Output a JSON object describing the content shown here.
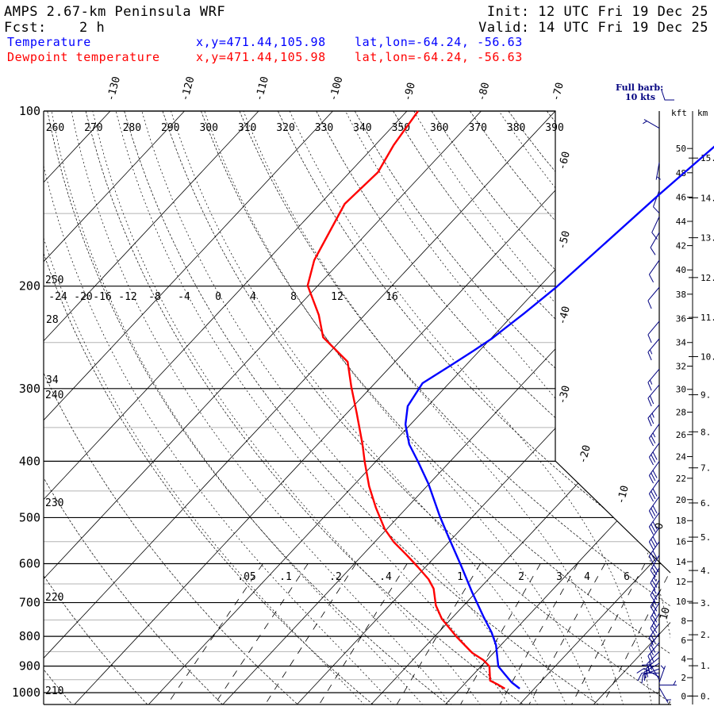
{
  "header": {
    "title": "AMPS 2.67-km Peninsula WRF",
    "fcst_label": "Fcst:",
    "fcst_value": "2 h",
    "init": "Init: 12 UTC Fri 19 Dec 25",
    "valid": "Valid: 14 UTC Fri 19 Dec 25"
  },
  "legend": [
    {
      "name": "Temperature",
      "xy": "x,y=471.44,105.98",
      "latlon": "lat,lon=-64.24, -56.63",
      "color": "#0000ff"
    },
    {
      "name": "Dewpoint temperature",
      "xy": "x,y=471.44,105.98",
      "latlon": "lat,lon=-64.24, -56.63",
      "color": "#ff0000"
    }
  ],
  "barb_key": {
    "line1": "Full barb:",
    "line2": "10 kts",
    "color": "#000080"
  },
  "chart_data": {
    "type": "line",
    "subtype": "skew-T log-p sounding",
    "y_axis": {
      "label": "pressure (hPa)",
      "scale": "log",
      "range": [
        1050,
        100
      ],
      "ticks": [
        "100",
        "200",
        "300",
        "400",
        "500",
        "600",
        "700",
        "800",
        "900",
        "1000"
      ]
    },
    "isotherm_top_labels": [
      "-130",
      "-120",
      "-110",
      "-100",
      "-90",
      "-80",
      "-70"
    ],
    "isotherm_side_labels": [
      "-60",
      "-50",
      "-40",
      "-30",
      "-20",
      "-10",
      "0",
      "10"
    ],
    "theta_top_labels": [
      "260",
      "270",
      "280",
      "290",
      "300",
      "310",
      "320",
      "330",
      "340",
      "350",
      "360",
      "370",
      "380",
      "390"
    ],
    "theta_side_labels": [
      "250",
      "240",
      "230",
      "220",
      "210"
    ],
    "moist_adiabat_labels": [
      "-24",
      "-20",
      "-16",
      "-12",
      "-8",
      "-4",
      "0",
      "4",
      "8",
      "12",
      "16"
    ],
    "mixing_ratio_labels": [
      ".05",
      ".1",
      ".2",
      ".4",
      "1",
      "2",
      "3",
      "4",
      "6"
    ],
    "misc_labels": [
      "28",
      "34"
    ],
    "height_axes": {
      "kft_label": "kft",
      "km_label": "km",
      "kft_ticks": [
        "0",
        "2",
        "4",
        "6",
        "8",
        "10",
        "12",
        "14",
        "16",
        "18",
        "20",
        "22",
        "24",
        "26",
        "28",
        "30",
        "32",
        "34",
        "36",
        "38",
        "40",
        "42",
        "44",
        "46",
        "48",
        "50"
      ],
      "km_ticks": [
        "0.",
        "1.",
        "2.",
        "3.",
        "4.",
        "5.",
        "6.",
        "7.",
        "8.",
        "9.",
        "10.",
        "11.",
        "12.",
        "13.",
        "14.",
        "15."
      ]
    },
    "series": [
      {
        "name": "Temperature",
        "color": "#0000ff",
        "points_p_T": [
          [
            984,
            -2.0
          ],
          [
            959.6,
            -3.9
          ],
          [
            930,
            -5.8
          ],
          [
            900.8,
            -7.7
          ],
          [
            827.9,
            -10.7
          ],
          [
            787.3,
            -12.9
          ],
          [
            739.4,
            -16.0
          ],
          [
            672.9,
            -20.5
          ],
          [
            604.8,
            -25.4
          ],
          [
            540.1,
            -30.7
          ],
          [
            496.2,
            -34.6
          ],
          [
            437.6,
            -40.1
          ],
          [
            400.8,
            -44.3
          ],
          [
            374,
            -47.7
          ],
          [
            345.8,
            -50.7
          ],
          [
            321.7,
            -52.7
          ],
          [
            293.7,
            -53.6
          ],
          [
            273.2,
            -52.0
          ],
          [
            258.2,
            -50.8
          ],
          [
            246.3,
            -49.9
          ],
          [
            222.7,
            -48.7
          ],
          [
            201.5,
            -47.7
          ],
          [
            139.5,
            -45.5
          ],
          [
            115.2,
            -44.1
          ],
          [
            100,
            -43.0
          ]
        ]
      },
      {
        "name": "Dewpoint temperature",
        "color": "#ff0000",
        "points_p_T": [
          [
            984,
            -4.0
          ],
          [
            968.8,
            -5.4
          ],
          [
            953.4,
            -7.0
          ],
          [
            900.8,
            -8.9
          ],
          [
            878.7,
            -10.5
          ],
          [
            854.3,
            -12.9
          ],
          [
            802,
            -17.0
          ],
          [
            746.4,
            -21.3
          ],
          [
            707.7,
            -23.8
          ],
          [
            662.5,
            -26.2
          ],
          [
            638,
            -28.1
          ],
          [
            608.5,
            -31.0
          ],
          [
            580.5,
            -34.0
          ],
          [
            550.3,
            -37.5
          ],
          [
            523.3,
            -40.3
          ],
          [
            480.7,
            -44.2
          ],
          [
            441.7,
            -47.8
          ],
          [
            400.8,
            -51.5
          ],
          [
            374,
            -54.0
          ],
          [
            329.8,
            -58.8
          ],
          [
            298.3,
            -62.7
          ],
          [
            269.8,
            -66.4
          ],
          [
            244.8,
            -72.8
          ],
          [
            224.1,
            -76.2
          ],
          [
            199.5,
            -81.4
          ],
          [
            180.5,
            -83.7
          ],
          [
            156.7,
            -85.6
          ],
          [
            144.4,
            -86.7
          ],
          [
            127.4,
            -86.2
          ],
          [
            114.5,
            -87.5
          ],
          [
            100,
            -88.5
          ]
        ]
      }
    ],
    "wind_p_dir_kt": [
      [
        107,
        300,
        5
      ],
      [
        122.6,
        190,
        5
      ],
      [
        136.9,
        200,
        10
      ],
      [
        151.9,
        205,
        10
      ],
      [
        161.7,
        210,
        10
      ],
      [
        180.5,
        215,
        10
      ],
      [
        200.9,
        220,
        10
      ],
      [
        229.8,
        220,
        10
      ],
      [
        246.3,
        220,
        15
      ],
      [
        277.7,
        220,
        15
      ],
      [
        295.6,
        220,
        20
      ],
      [
        319.8,
        220,
        25
      ],
      [
        345,
        215,
        25
      ],
      [
        372,
        215,
        30
      ],
      [
        400,
        215,
        30
      ],
      [
        430,
        215,
        30
      ],
      [
        460,
        215,
        30
      ],
      [
        490,
        215,
        30
      ],
      [
        520,
        215,
        30
      ],
      [
        550,
        215,
        30
      ],
      [
        580,
        210,
        30
      ],
      [
        610,
        210,
        25
      ],
      [
        640,
        210,
        25
      ],
      [
        670,
        210,
        25
      ],
      [
        700,
        210,
        25
      ],
      [
        730,
        210,
        25
      ],
      [
        760,
        215,
        20
      ],
      [
        790,
        215,
        20
      ],
      [
        820,
        220,
        20
      ],
      [
        850,
        225,
        20
      ],
      [
        870,
        230,
        15
      ],
      [
        890,
        240,
        15
      ],
      [
        910,
        250,
        15
      ],
      [
        925,
        270,
        10
      ],
      [
        940,
        300,
        10
      ],
      [
        950,
        330,
        10
      ],
      [
        960,
        20,
        5
      ],
      [
        970,
        90,
        5
      ],
      [
        980,
        150,
        5
      ]
    ]
  }
}
